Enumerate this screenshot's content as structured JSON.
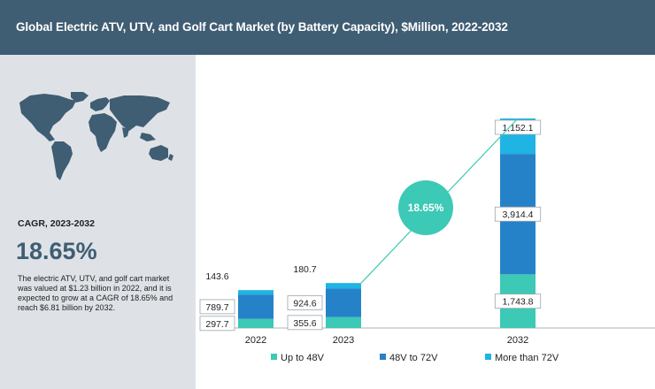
{
  "header": {
    "title": "Global Electric ATV, UTV, and Golf Cart Market (by Battery Capacity), $Million, 2022-2032"
  },
  "sidebar": {
    "map_icon": "world-map-icon",
    "cagr_label": "CAGR, 2023-2032",
    "cagr_value": "18.65%",
    "summary": "The electric ATV, UTV, and golf cart market was valued at $1.23 billion in 2022, and it is expected to grow at a CAGR of 18.65% and reach $6.81 billion by 2032."
  },
  "colors": {
    "header_bg": "#3f5d73",
    "sidebar_bg": "#dee2e6",
    "up_to_48v": "#3cc9b5",
    "v48_to_72v": "#2682c8",
    "more_than_72v": "#1fb4e3",
    "cagr_bubble": "#3cc9b5"
  },
  "chart_data": {
    "type": "bar",
    "stacked": true,
    "categories": [
      "2022",
      "2023",
      "2032"
    ],
    "series": [
      {
        "name": "Up to 48V",
        "values": [
          297.7,
          355.6,
          1743.8
        ],
        "labels": [
          "297.7",
          "355.6",
          "1,743.8"
        ]
      },
      {
        "name": "48V to 72V",
        "values": [
          789.7,
          924.6,
          3914.4
        ],
        "labels": [
          "789.7",
          "924.6",
          "3,914.4"
        ]
      },
      {
        "name": "More than 72V",
        "values": [
          143.6,
          180.7,
          1152.1
        ],
        "labels": [
          "143.6",
          "180.7",
          "1,152.1"
        ]
      }
    ],
    "annotation": "18.65%",
    "legend_position": "bottom",
    "grid": false
  }
}
